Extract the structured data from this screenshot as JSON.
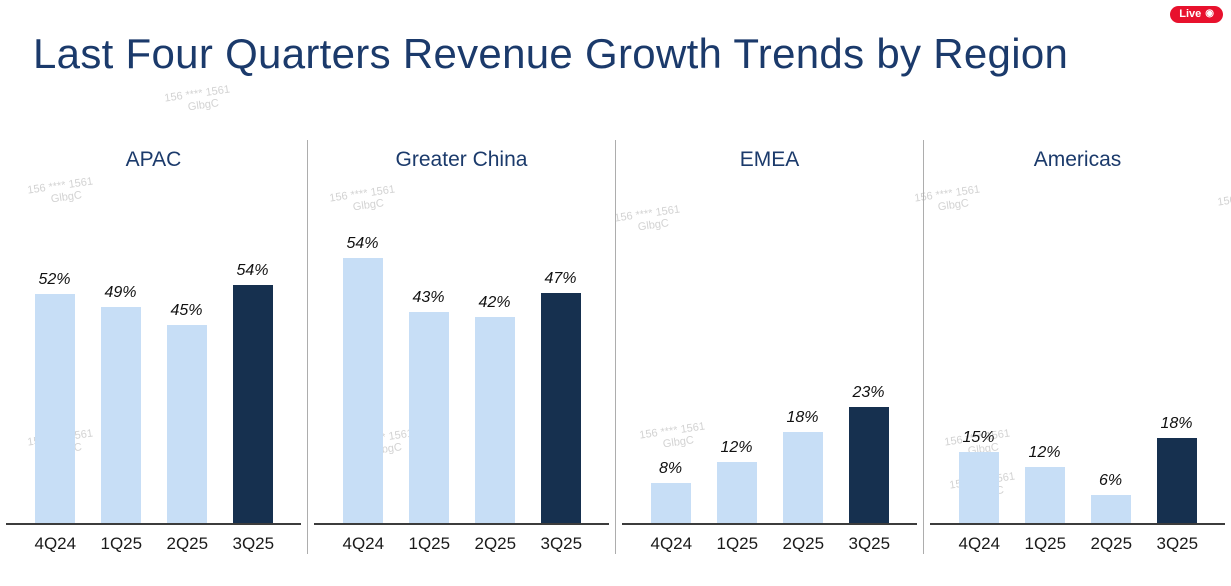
{
  "page": {
    "title": "Last Four Quarters Revenue Growth Trends by Region",
    "live_badge": {
      "label": "Live",
      "icon": "broadcast-icon",
      "icon_glyph": "◉",
      "color": "#E8112D"
    }
  },
  "watermark": {
    "line1": "156 **** 1561",
    "line2": "GlbgC"
  },
  "chart_data": {
    "type": "bar",
    "title": "Last Four Quarters Revenue Growth Trends by Region",
    "categories": [
      "4Q24",
      "1Q25",
      "2Q25",
      "3Q25"
    ],
    "unit": "%",
    "series": [
      {
        "name": "APAC",
        "values": [
          52,
          49,
          45,
          54
        ]
      },
      {
        "name": "Greater China",
        "values": [
          54,
          43,
          42,
          47
        ]
      },
      {
        "name": "EMEA",
        "values": [
          8,
          12,
          18,
          23
        ]
      },
      {
        "name": "Americas",
        "values": [
          15,
          12,
          6,
          18
        ]
      }
    ],
    "highlight_category": "3Q25",
    "value_labels": true,
    "grid": false,
    "legend": "none",
    "colors": {
      "bar": "#C7DEF6",
      "highlight_bar": "#16304F",
      "title": "#1B3A6B"
    }
  }
}
